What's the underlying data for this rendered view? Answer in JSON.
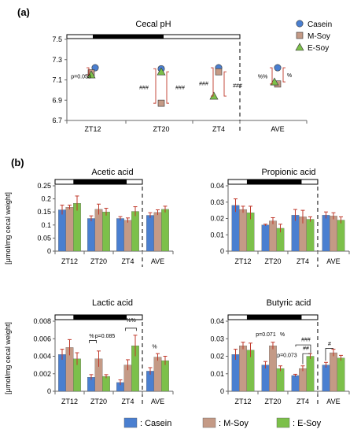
{
  "colors": {
    "casein": "#4a7fd0",
    "msoy": "#c49a86",
    "esoy": "#7cc04a",
    "err": "#c0392b",
    "axis": "#666666"
  },
  "figure": {
    "panel_a_label": "(a)",
    "panel_b_label": "(b)",
    "ylabel_b_top": "[μmol/mg cecal weight]",
    "ylabel_b_bottom": "[μmol/mg cecal weight]",
    "legend_bottom": [
      {
        "key": "casein",
        "text": ": Casein"
      },
      {
        "key": "msoy",
        "text": ": M-Soy"
      },
      {
        "key": "esoy",
        "text": ": E-Soy"
      }
    ]
  },
  "chart_data": [
    {
      "type": "scatter",
      "title": "Cecal pH",
      "categories": [
        "ZT12",
        "ZT20",
        "ZT4",
        "AVE"
      ],
      "ylim": [
        6.7,
        7.5
      ],
      "yticks": [
        "6.7",
        "6.9",
        "7.1",
        "7.3",
        "7.5"
      ],
      "legend": [
        "Casein",
        "M-Soy",
        "E-Soy"
      ],
      "series": [
        {
          "name": "Casein",
          "values": [
            7.22,
            7.21,
            7.22,
            7.22
          ]
        },
        {
          "name": "M-Soy",
          "values": [
            7.17,
            6.87,
            7.18,
            7.06
          ]
        },
        {
          "name": "E-Soy",
          "values": [
            7.15,
            7.18,
            6.94,
            7.08
          ]
        }
      ],
      "annotations": [
        "p=0.053",
        "###",
        "###",
        "###",
        "###",
        "%%",
        "%"
      ]
    },
    {
      "type": "bar",
      "title": "Acetic acid",
      "categories": [
        "ZT12",
        "ZT20",
        "ZT4",
        "AVE"
      ],
      "ylim": [
        0,
        0.25
      ],
      "yticks": [
        "0",
        "0.05",
        "0.1",
        "0.15",
        "0.2",
        "0.25"
      ],
      "series": [
        {
          "name": "Casein",
          "values": [
            0.158,
            0.125,
            0.125,
            0.137
          ],
          "err": [
            0.018,
            0.01,
            0.007,
            0.01
          ]
        },
        {
          "name": "M-Soy",
          "values": [
            0.168,
            0.16,
            0.118,
            0.148
          ],
          "err": [
            0.008,
            0.02,
            0.009,
            0.01
          ]
        },
        {
          "name": "E-Soy",
          "values": [
            0.183,
            0.15,
            0.152,
            0.16
          ],
          "err": [
            0.028,
            0.014,
            0.018,
            0.012
          ]
        }
      ],
      "annotations": []
    },
    {
      "type": "bar",
      "title": "Propionic acid",
      "categories": [
        "ZT12",
        "ZT20",
        "ZT4",
        "AVE"
      ],
      "ylim": [
        0,
        0.04
      ],
      "yticks": [
        "0",
        "0.01",
        "0.02",
        "0.03",
        "0.04"
      ],
      "series": [
        {
          "name": "Casein",
          "values": [
            0.028,
            0.016,
            0.022,
            0.022
          ],
          "err": [
            0.004,
            0.0005,
            0.0035,
            0.002
          ]
        },
        {
          "name": "M-Soy",
          "values": [
            0.0255,
            0.0185,
            0.021,
            0.0215
          ],
          "err": [
            0.002,
            0.002,
            0.004,
            0.002
          ]
        },
        {
          "name": "E-Soy",
          "values": [
            0.0235,
            0.014,
            0.0195,
            0.019
          ],
          "err": [
            0.004,
            0.0025,
            0.0015,
            0.002
          ]
        }
      ],
      "annotations": []
    },
    {
      "type": "bar",
      "title": "Lactic acid",
      "categories": [
        "ZT12",
        "ZT20",
        "ZT4",
        "AVE"
      ],
      "ylim": [
        0,
        0.008
      ],
      "yticks": [
        "0",
        "0.002",
        "0.004",
        "0.006",
        "0.008"
      ],
      "series": [
        {
          "name": "Casein",
          "values": [
            0.0042,
            0.0016,
            0.001,
            0.0023
          ],
          "err": [
            0.0006,
            0.0003,
            0.0003,
            0.0004
          ]
        },
        {
          "name": "M-Soy",
          "values": [
            0.005,
            0.0037,
            0.003,
            0.0039
          ],
          "err": [
            0.0009,
            0.0009,
            0.0006,
            0.0004
          ]
        },
        {
          "name": "E-Soy",
          "values": [
            0.0037,
            0.0017,
            0.0052,
            0.0035
          ],
          "err": [
            0.0007,
            0.0002,
            0.0012,
            0.0005
          ]
        }
      ],
      "annotations": [
        "%",
        "p=0.085",
        "%%",
        "%"
      ]
    },
    {
      "type": "bar",
      "title": "Butyric acid",
      "categories": [
        "ZT12",
        "ZT20",
        "ZT4",
        "AVE"
      ],
      "ylim": [
        0,
        0.04
      ],
      "yticks": [
        "0",
        "0.01",
        "0.02",
        "0.03",
        "0.04"
      ],
      "series": [
        {
          "name": "Casein",
          "values": [
            0.021,
            0.015,
            0.009,
            0.015
          ],
          "err": [
            0.003,
            0.002,
            0.0007,
            0.0015
          ]
        },
        {
          "name": "M-Soy",
          "values": [
            0.026,
            0.026,
            0.013,
            0.022
          ],
          "err": [
            0.002,
            0.002,
            0.0015,
            0.002
          ]
        },
        {
          "name": "E-Soy",
          "values": [
            0.0235,
            0.013,
            0.02,
            0.019
          ],
          "err": [
            0.004,
            0.0015,
            0.0015,
            0.0015
          ]
        }
      ],
      "annotations": [
        "p=0.071",
        "%",
        "p=0.073",
        "###",
        "##",
        "#"
      ]
    }
  ]
}
